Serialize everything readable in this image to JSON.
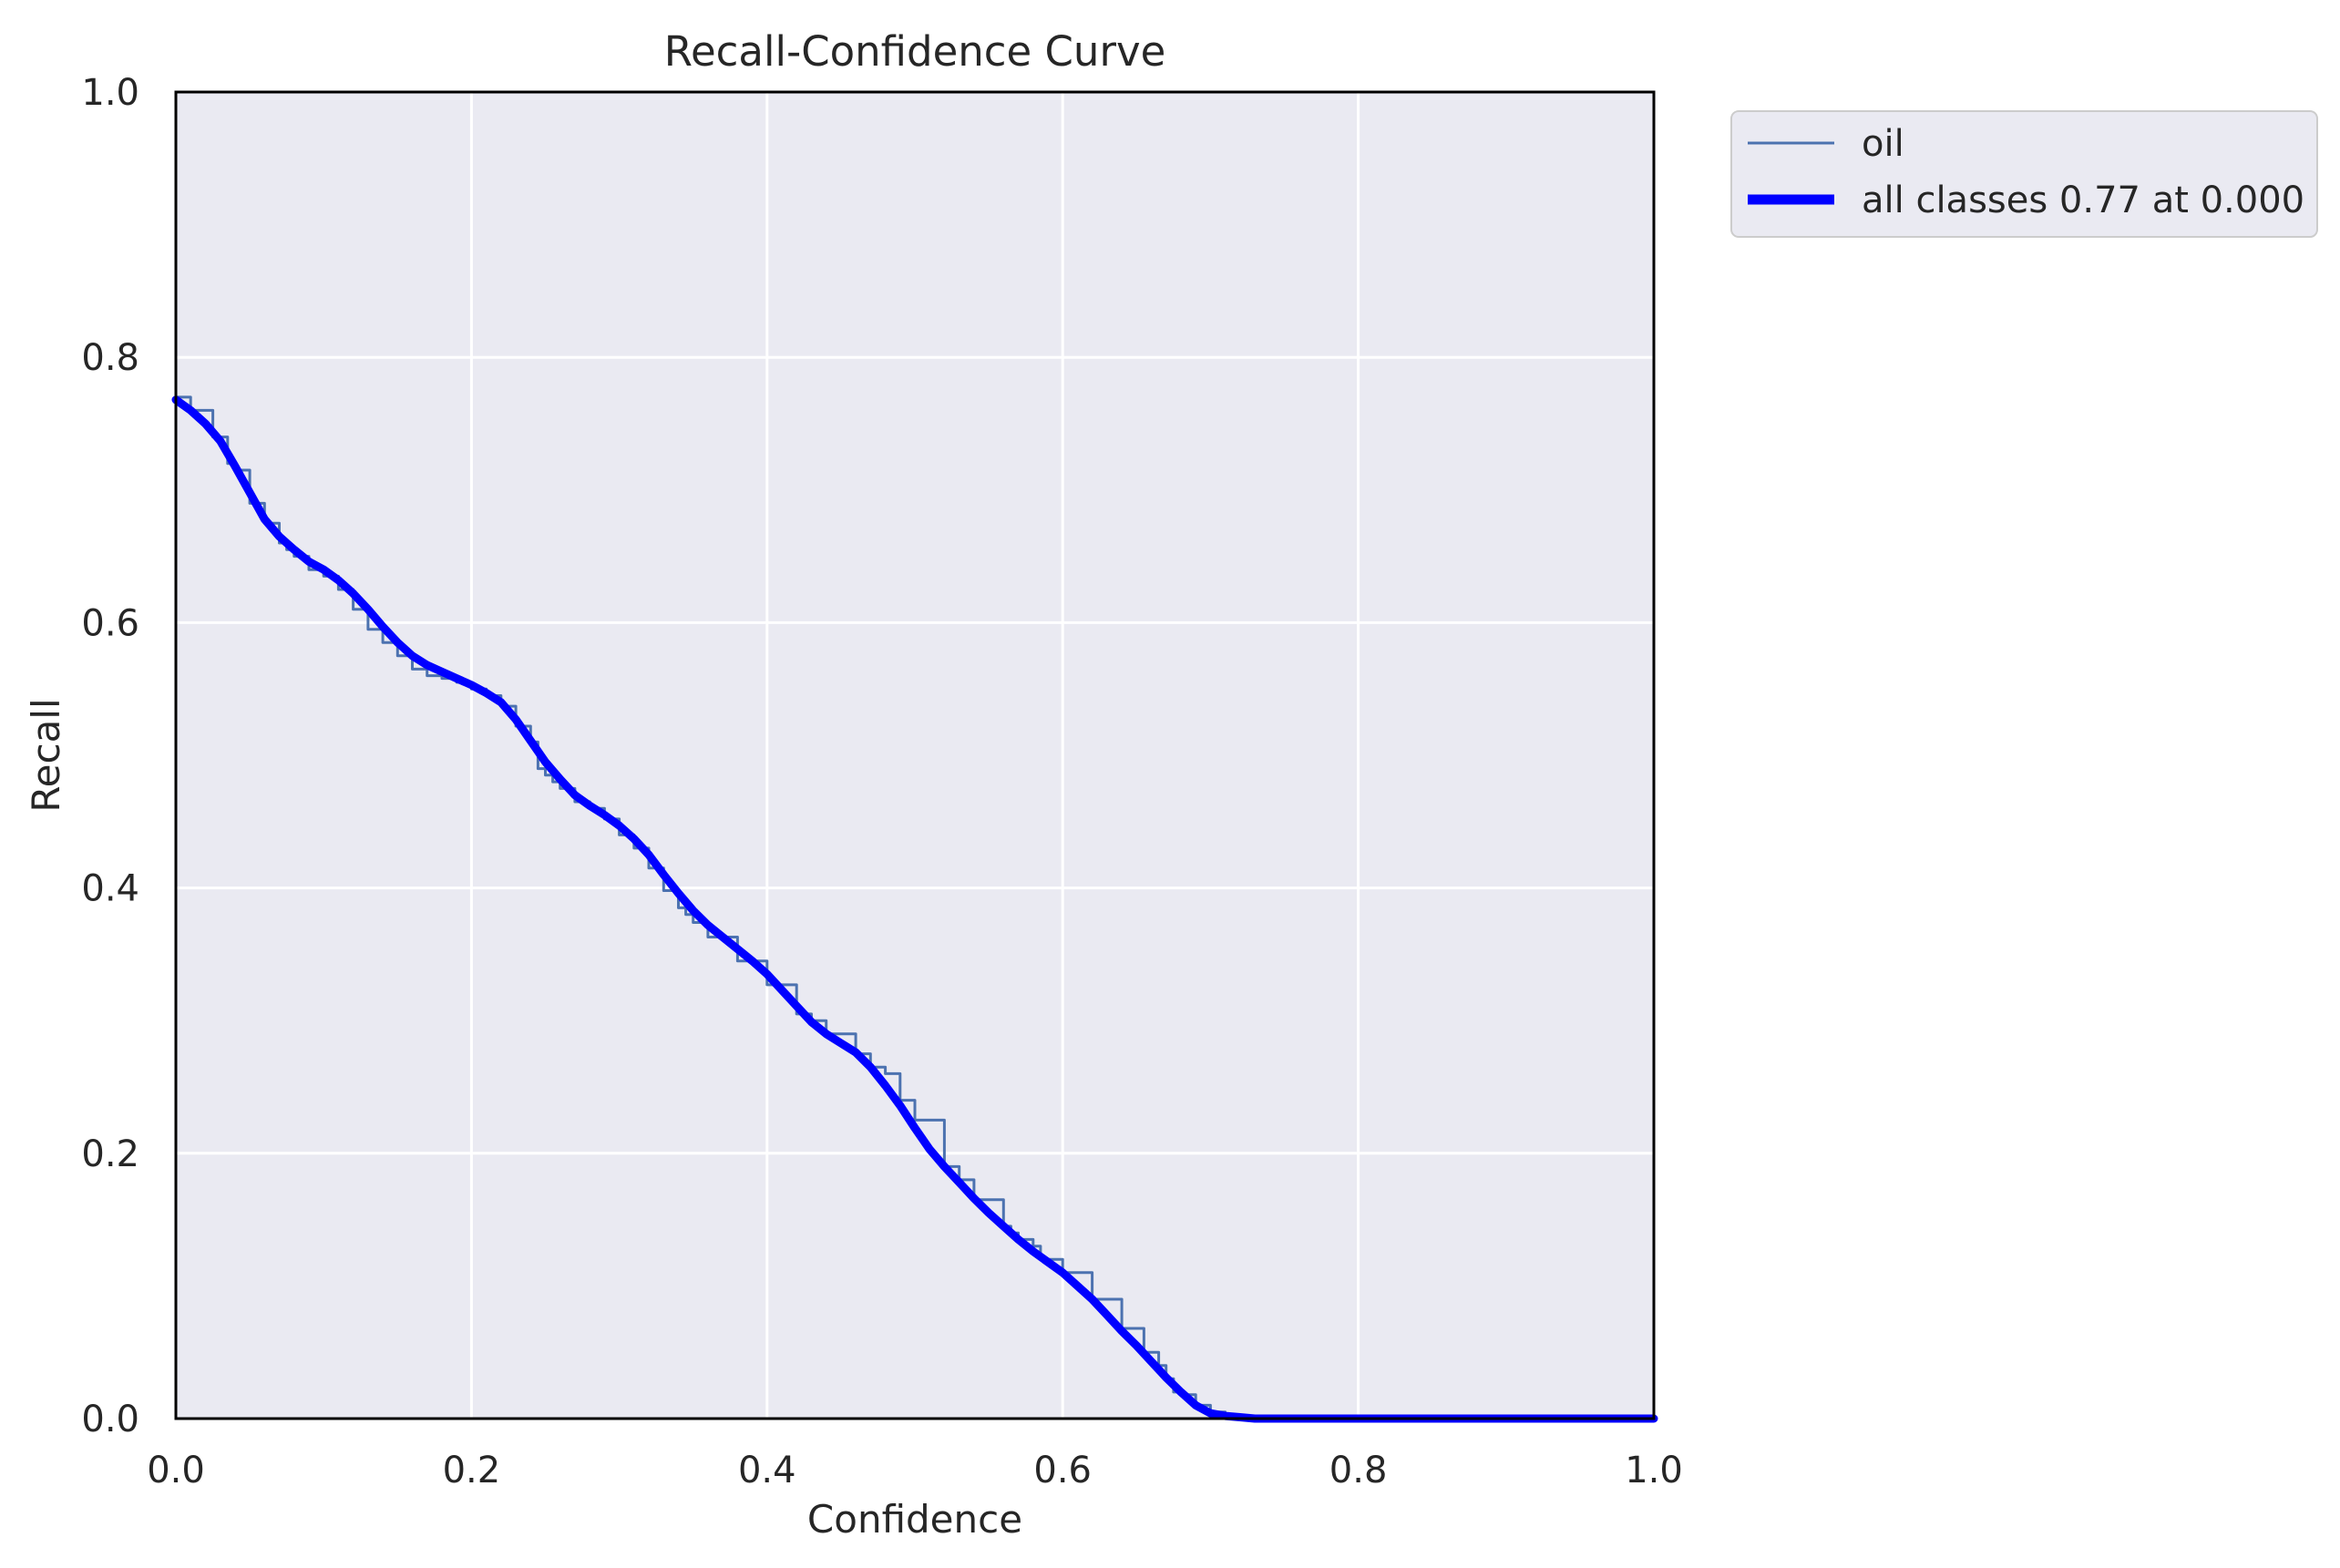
{
  "chart_data": {
    "type": "line",
    "title": "Recall-Confidence Curve",
    "xlabel": "Confidence",
    "ylabel": "Recall",
    "xlim": [
      0.0,
      1.0
    ],
    "ylim": [
      0.0,
      1.0
    ],
    "x_ticks": [
      "0.0",
      "0.2",
      "0.4",
      "0.6",
      "0.8",
      "1.0"
    ],
    "y_ticks": [
      "0.0",
      "0.2",
      "0.4",
      "0.6",
      "0.8",
      "1.0"
    ],
    "grid": true,
    "legend_position": "outside-top-right",
    "colors": {
      "plot_background": "#eaeaf2",
      "grid": "#ffffff",
      "oil": "#4c72b0",
      "all_classes": "#0000ff"
    },
    "series": [
      {
        "name": "oil",
        "style": "thin-step",
        "x": [
          0.0,
          0.01,
          0.02,
          0.025,
          0.03,
          0.035,
          0.04,
          0.05,
          0.06,
          0.07,
          0.075,
          0.08,
          0.09,
          0.1,
          0.11,
          0.12,
          0.13,
          0.14,
          0.15,
          0.16,
          0.17,
          0.18,
          0.19,
          0.2,
          0.21,
          0.22,
          0.23,
          0.235,
          0.24,
          0.245,
          0.25,
          0.255,
          0.26,
          0.27,
          0.28,
          0.29,
          0.3,
          0.31,
          0.32,
          0.33,
          0.34,
          0.345,
          0.35,
          0.36,
          0.38,
          0.4,
          0.42,
          0.43,
          0.44,
          0.46,
          0.47,
          0.48,
          0.49,
          0.5,
          0.52,
          0.53,
          0.54,
          0.56,
          0.565,
          0.57,
          0.58,
          0.585,
          0.6,
          0.62,
          0.64,
          0.655,
          0.66,
          0.665,
          0.67,
          0.675,
          0.68,
          0.69,
          0.7,
          0.71,
          0.73,
          0.8,
          0.9,
          1.0
        ],
        "y": [
          0.77,
          0.76,
          0.76,
          0.74,
          0.74,
          0.72,
          0.715,
          0.69,
          0.675,
          0.66,
          0.655,
          0.65,
          0.64,
          0.635,
          0.625,
          0.61,
          0.595,
          0.585,
          0.575,
          0.565,
          0.56,
          0.558,
          0.555,
          0.55,
          0.545,
          0.537,
          0.522,
          0.522,
          0.51,
          0.49,
          0.485,
          0.48,
          0.475,
          0.465,
          0.46,
          0.452,
          0.44,
          0.43,
          0.415,
          0.398,
          0.385,
          0.38,
          0.374,
          0.363,
          0.345,
          0.327,
          0.305,
          0.3,
          0.29,
          0.275,
          0.265,
          0.26,
          0.24,
          0.225,
          0.19,
          0.18,
          0.165,
          0.145,
          0.14,
          0.135,
          0.13,
          0.12,
          0.11,
          0.09,
          0.068,
          0.05,
          0.05,
          0.04,
          0.03,
          0.02,
          0.018,
          0.01,
          0.005,
          0.002,
          0.0,
          0.0,
          0.0,
          0.0
        ]
      },
      {
        "name": "all classes 0.77 at 0.000",
        "style": "thick-smooth",
        "x": [
          0.0,
          0.01,
          0.02,
          0.03,
          0.04,
          0.05,
          0.06,
          0.07,
          0.08,
          0.09,
          0.1,
          0.11,
          0.12,
          0.13,
          0.14,
          0.15,
          0.16,
          0.17,
          0.18,
          0.19,
          0.2,
          0.21,
          0.22,
          0.23,
          0.24,
          0.25,
          0.26,
          0.27,
          0.28,
          0.29,
          0.3,
          0.31,
          0.32,
          0.33,
          0.34,
          0.35,
          0.36,
          0.37,
          0.38,
          0.39,
          0.4,
          0.41,
          0.42,
          0.43,
          0.44,
          0.45,
          0.46,
          0.47,
          0.48,
          0.49,
          0.5,
          0.51,
          0.52,
          0.53,
          0.54,
          0.55,
          0.56,
          0.57,
          0.58,
          0.59,
          0.6,
          0.61,
          0.62,
          0.63,
          0.64,
          0.65,
          0.66,
          0.67,
          0.68,
          0.69,
          0.7,
          0.71,
          0.72,
          0.73,
          0.74,
          0.8,
          0.9,
          1.0
        ],
        "y": [
          0.768,
          0.76,
          0.75,
          0.737,
          0.718,
          0.698,
          0.678,
          0.665,
          0.655,
          0.646,
          0.64,
          0.632,
          0.622,
          0.61,
          0.597,
          0.585,
          0.575,
          0.568,
          0.563,
          0.558,
          0.553,
          0.547,
          0.54,
          0.527,
          0.511,
          0.495,
          0.482,
          0.47,
          0.462,
          0.455,
          0.447,
          0.437,
          0.425,
          0.41,
          0.396,
          0.383,
          0.372,
          0.363,
          0.354,
          0.345,
          0.335,
          0.323,
          0.311,
          0.299,
          0.29,
          0.283,
          0.276,
          0.265,
          0.251,
          0.236,
          0.219,
          0.203,
          0.19,
          0.178,
          0.166,
          0.155,
          0.145,
          0.135,
          0.126,
          0.118,
          0.11,
          0.1,
          0.09,
          0.078,
          0.066,
          0.055,
          0.043,
          0.031,
          0.02,
          0.01,
          0.004,
          0.002,
          0.001,
          0.0,
          0.0,
          0.0,
          0.0,
          0.0
        ]
      }
    ]
  }
}
